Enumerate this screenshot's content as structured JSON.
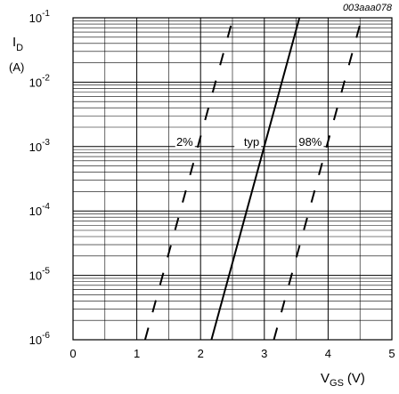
{
  "chart_data": {
    "type": "line",
    "figure_id": "003aaa078",
    "y_label_main": "I",
    "y_label_sub": "D",
    "y_unit": "(A)",
    "x_label_main": "V",
    "x_label_sub": "GS",
    "x_unit": "(V)",
    "x_scale": "linear",
    "y_scale": "log",
    "xlim": [
      0,
      5
    ],
    "ylim": [
      1e-06,
      0.1
    ],
    "x_ticks": [
      "0",
      "1",
      "2",
      "3",
      "4",
      "5"
    ],
    "y_ticks": [
      {
        "base": "10",
        "exp": "-6",
        "value": 1e-06
      },
      {
        "base": "10",
        "exp": "-5",
        "value": 1e-05
      },
      {
        "base": "10",
        "exp": "-4",
        "value": 0.0001
      },
      {
        "base": "10",
        "exp": "-3",
        "value": 0.001
      },
      {
        "base": "10",
        "exp": "-2",
        "value": 0.01
      },
      {
        "base": "10",
        "exp": "-1",
        "value": 0.1
      }
    ],
    "grid": true,
    "series": [
      {
        "name": "2%",
        "style": "dashed",
        "label_position": "left",
        "x": [
          1.13,
          2.51
        ],
        "y": [
          1e-06,
          0.1
        ]
      },
      {
        "name": "typ",
        "style": "solid",
        "label_position": "left",
        "x": [
          2.17,
          3.55
        ],
        "y": [
          1e-06,
          0.1
        ]
      },
      {
        "name": "98%",
        "style": "dashed",
        "label_position": "left",
        "x": [
          3.15,
          4.53
        ],
        "y": [
          1e-06,
          0.1
        ]
      }
    ]
  }
}
